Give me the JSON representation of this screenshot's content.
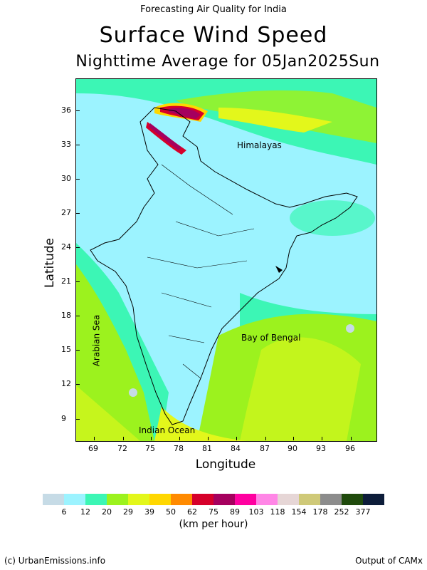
{
  "header": {
    "top_title": "Forecasting Air Quality for India",
    "main_title": "Surface Wind Speed",
    "sub_title": "Nighttime Average for 05Jan2025Sun"
  },
  "axes": {
    "xlabel": "Longitude",
    "ylabel": "Latitude",
    "xticks": [
      "69",
      "72",
      "75",
      "78",
      "81",
      "84",
      "87",
      "90",
      "93",
      "96"
    ],
    "yticks": [
      "36",
      "33",
      "30",
      "27",
      "24",
      "21",
      "18",
      "15",
      "12",
      "9"
    ]
  },
  "map_labels": {
    "himalayas": "Himalayas",
    "arabian_sea": "Arabian Sea",
    "bay_of_bengal": "Bay of Bengal",
    "indian_ocean": "Indian Ocean"
  },
  "legend": {
    "labels": [
      "6",
      "12",
      "20",
      "29",
      "39",
      "50",
      "62",
      "75",
      "89",
      "103",
      "118",
      "154",
      "178",
      "252",
      "377"
    ],
    "colors": [
      "#c6dbe6",
      "#9cf3ff",
      "#3cf6b5",
      "#9cf21e",
      "#e3f71b",
      "#ffd700",
      "#ff8a00",
      "#d6002a",
      "#a5005e",
      "#ff00a0",
      "#ff86e6",
      "#e6d6d6",
      "#cfc978",
      "#8c8c8c",
      "#1f4a0c",
      "#0d1d3a"
    ],
    "units": "(km per hour)"
  },
  "footer": {
    "copyright": "(c) UrbanEmissions.info",
    "output": "Output of CAMx"
  },
  "chart_data": {
    "type": "heatmap",
    "title": "Surface Wind Speed",
    "subtitle": "Nighttime Average for 05Jan2025Sun",
    "xlabel": "Longitude",
    "ylabel": "Latitude",
    "xlim": [
      66.5,
      99.5
    ],
    "ylim": [
      7.3,
      39.5
    ],
    "unit": "km per hour",
    "bins": [
      6,
      12,
      20,
      29,
      39,
      50,
      62,
      75,
      89,
      103,
      118,
      154,
      178,
      252,
      377
    ]
  }
}
